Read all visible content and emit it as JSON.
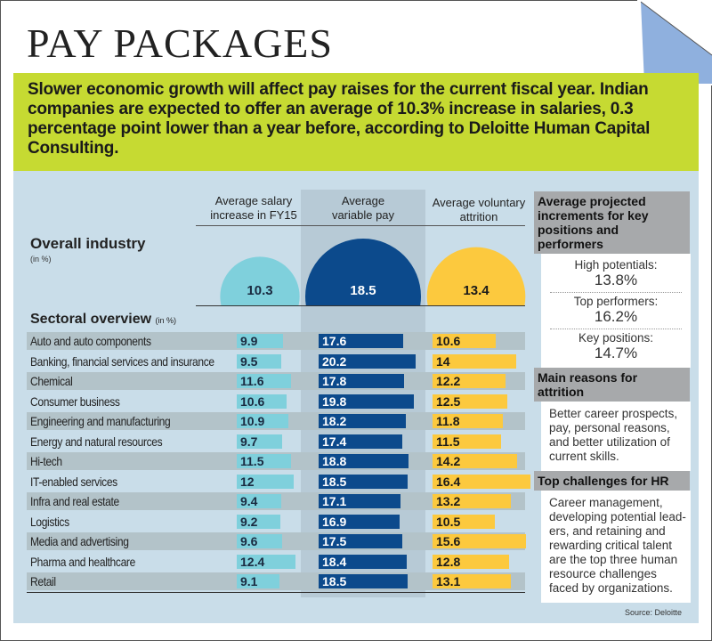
{
  "title": "PAY PACKAGES",
  "intro": "Slower economic growth will affect pay raises for the current fiscal year. Indian companies are expected to offer an average of 10.3% increase in salaries, 0.3 percentage point lower than a year before, according to Deloitte Human Capital Consulting.",
  "colors": {
    "salary": "#7fd0dc",
    "variable": "#0c4a8c",
    "attrition": "#fcc93e",
    "banner": "#c6da32",
    "background": "#c9dde9"
  },
  "chart_data": {
    "type": "bar",
    "columns": [
      "Average salary increase in FY15",
      "Average variable pay",
      "Average voluntary attrition"
    ],
    "overall": {
      "label": "Overall industry",
      "unit": "(in %)",
      "values": [
        10.3,
        18.5,
        13.4
      ]
    },
    "sectoral_label": "Sectoral overview",
    "sectoral_unit": "(in %)",
    "categories": [
      "Auto and auto components",
      "Banking, financial services and insurance",
      "Chemical",
      "Consumer business",
      "Engineering and manufacturing",
      "Energy and natural resources",
      "Hi-tech",
      "IT-enabled services",
      "Infra and real estate",
      "Logistics",
      "Media and advertising",
      "Pharma and healthcare",
      "Retail"
    ],
    "series": [
      {
        "name": "Average salary increase in FY15",
        "values": [
          9.9,
          9.5,
          11.6,
          10.6,
          10.9,
          9.7,
          11.5,
          12,
          9.4,
          9.2,
          9.6,
          12.4,
          9.1
        ]
      },
      {
        "name": "Average variable pay",
        "values": [
          17.6,
          20.2,
          17.8,
          19.8,
          18.2,
          17.4,
          18.8,
          18.5,
          17.1,
          16.9,
          17.5,
          18.4,
          18.5
        ]
      },
      {
        "name": "Average voluntary attrition",
        "values": [
          10.6,
          14,
          12.2,
          12.5,
          11.8,
          11.5,
          14.2,
          16.4,
          13.2,
          10.5,
          15.6,
          12.8,
          13.1
        ]
      }
    ]
  },
  "side": {
    "increments_title": "Average projected increments for key positions and performers",
    "increments": [
      {
        "label": "High potentials:",
        "value": "13.8%"
      },
      {
        "label": "Top performers:",
        "value": "16.2%"
      },
      {
        "label": "Key positions:",
        "value": "14.7%"
      }
    ],
    "attrition_title": "Main reasons for attrition",
    "attrition_text": "Better career prospects, pay, personal reasons, and better utilization of current skills.",
    "hr_title": "Top challenges for HR",
    "hr_text": "Career management, developing potential lead-ers, and retaining and rewarding critical talent are the top three human resource challenges faced by organizations."
  },
  "source": "Source: Deloitte"
}
